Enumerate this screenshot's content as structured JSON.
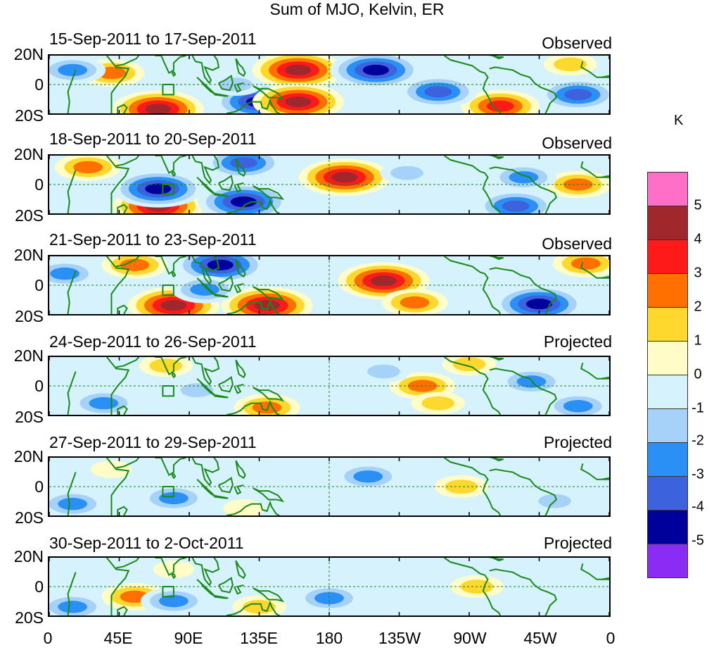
{
  "title": "Sum of MJO, Kelvin, ER",
  "panels": [
    {
      "date": "15-Sep-2011 to 17-Sep-2011",
      "type": "Observed"
    },
    {
      "date": "18-Sep-2011 to 20-Sep-2011",
      "type": "Observed"
    },
    {
      "date": "21-Sep-2011 to 23-Sep-2011",
      "type": "Observed"
    },
    {
      "date": "24-Sep-2011 to 26-Sep-2011",
      "type": "Projected"
    },
    {
      "date": "27-Sep-2011 to 29-Sep-2011",
      "type": "Projected"
    },
    {
      "date": "30-Sep-2011 to 2-Oct-2011",
      "type": "Projected"
    }
  ],
  "y_ticks": [
    "20N",
    "0",
    "20S"
  ],
  "x_ticks": [
    "0",
    "45E",
    "90E",
    "135E",
    "180",
    "135W",
    "90W",
    "45W",
    "0"
  ],
  "colorbar": {
    "unit": "K",
    "ticks": [
      "5",
      "4",
      "3",
      "2",
      "1",
      "0",
      "-1",
      "-2",
      "-3",
      "-4",
      "-5"
    ],
    "colors": [
      "#ff6ec7",
      "#a0282d",
      "#ff1a1a",
      "#ff7000",
      "#ffd82e",
      "#fffcc8",
      "#d6f3fd",
      "#a6d2fa",
      "#2a90f5",
      "#3c62de",
      "#00009a",
      "#8a2cf3"
    ]
  },
  "chart_data": {
    "type": "heatmap",
    "title": "Sum of MJO, Kelvin, ER",
    "x_range": [
      0,
      360
    ],
    "y_range": [
      -20,
      20
    ],
    "levels": [
      -5,
      -4,
      -3,
      -2,
      -1,
      0,
      1,
      2,
      3,
      4,
      5
    ],
    "panels": [
      {
        "label": "15-Sep-2011 to 17-Sep-2011",
        "status": "Observed",
        "anomalies": [
          {
            "lon": 160,
            "lat": 10,
            "value": 5
          },
          {
            "lon": 210,
            "lat": 10,
            "value": -5
          },
          {
            "lon": 135,
            "lat": -12,
            "value": -5
          },
          {
            "lon": 160,
            "lat": -12,
            "value": 5
          },
          {
            "lon": 70,
            "lat": -17,
            "value": 5
          },
          {
            "lon": 290,
            "lat": -15,
            "value": 4
          },
          {
            "lon": 340,
            "lat": -7,
            "value": -4
          },
          {
            "lon": 250,
            "lat": -5,
            "value": -4
          },
          {
            "lon": 40,
            "lat": 8,
            "value": 3
          },
          {
            "lon": 15,
            "lat": 10,
            "value": -3
          },
          {
            "lon": 120,
            "lat": 0,
            "value": -2
          },
          {
            "lon": 335,
            "lat": 14,
            "value": 2
          }
        ]
      },
      {
        "label": "18-Sep-2011 to 20-Sep-2011",
        "status": "Observed",
        "anomalies": [
          {
            "lon": 190,
            "lat": 5,
            "value": 5
          },
          {
            "lon": 70,
            "lat": -15,
            "value": 5
          },
          {
            "lon": 125,
            "lat": -12,
            "value": -5
          },
          {
            "lon": 70,
            "lat": -3,
            "value": -5
          },
          {
            "lon": 300,
            "lat": -15,
            "value": -4
          },
          {
            "lon": 125,
            "lat": 15,
            "value": -4
          },
          {
            "lon": 25,
            "lat": 12,
            "value": 3
          },
          {
            "lon": 340,
            "lat": 0,
            "value": 3
          },
          {
            "lon": 230,
            "lat": 8,
            "value": -2
          },
          {
            "lon": 305,
            "lat": 5,
            "value": -3
          }
        ]
      },
      {
        "label": "21-Sep-2011 to 23-Sep-2011",
        "status": "Observed",
        "anomalies": [
          {
            "lon": 215,
            "lat": 3,
            "value": 5
          },
          {
            "lon": 140,
            "lat": -14,
            "value": 5
          },
          {
            "lon": 80,
            "lat": -14,
            "value": 5
          },
          {
            "lon": 110,
            "lat": 14,
            "value": -5
          },
          {
            "lon": 315,
            "lat": -13,
            "value": -5
          },
          {
            "lon": 55,
            "lat": 14,
            "value": 3
          },
          {
            "lon": 235,
            "lat": -12,
            "value": 3
          },
          {
            "lon": 10,
            "lat": 8,
            "value": -3
          },
          {
            "lon": 100,
            "lat": -3,
            "value": -3
          },
          {
            "lon": 345,
            "lat": 15,
            "value": 3
          }
        ]
      },
      {
        "label": "24-Sep-2011 to 26-Sep-2011",
        "status": "Projected",
        "anomalies": [
          {
            "lon": 240,
            "lat": 0,
            "value": 3
          },
          {
            "lon": 310,
            "lat": 3,
            "value": -3
          },
          {
            "lon": 250,
            "lat": -12,
            "value": 2
          },
          {
            "lon": 140,
            "lat": -15,
            "value": 3
          },
          {
            "lon": 35,
            "lat": -12,
            "value": -3
          },
          {
            "lon": 340,
            "lat": -14,
            "value": -3
          },
          {
            "lon": 215,
            "lat": 10,
            "value": -2
          },
          {
            "lon": 75,
            "lat": 14,
            "value": 2
          },
          {
            "lon": 270,
            "lat": 15,
            "value": 2
          },
          {
            "lon": 95,
            "lat": -3,
            "value": -2
          }
        ]
      },
      {
        "label": "27-Sep-2011 to 29-Sep-2011",
        "status": "Projected",
        "anomalies": [
          {
            "lon": 80,
            "lat": -8,
            "value": -3
          },
          {
            "lon": 15,
            "lat": -12,
            "value": -3
          },
          {
            "lon": 205,
            "lat": 7,
            "value": -3
          },
          {
            "lon": 265,
            "lat": 0,
            "value": 2
          },
          {
            "lon": 125,
            "lat": -15,
            "value": 1
          },
          {
            "lon": 325,
            "lat": -10,
            "value": -2
          },
          {
            "lon": 40,
            "lat": 12,
            "value": 1
          }
        ]
      },
      {
        "label": "30-Sep-2011 to 2-Oct-2011",
        "status": "Projected",
        "anomalies": [
          {
            "lon": 55,
            "lat": -7,
            "value": 3
          },
          {
            "lon": 80,
            "lat": -10,
            "value": -3
          },
          {
            "lon": 180,
            "lat": -8,
            "value": -3
          },
          {
            "lon": 15,
            "lat": -14,
            "value": -3
          },
          {
            "lon": 275,
            "lat": 0,
            "value": 2
          },
          {
            "lon": 135,
            "lat": -14,
            "value": 2
          },
          {
            "lon": 80,
            "lat": 12,
            "value": 1
          },
          {
            "lon": 200,
            "lat": 13,
            "value": -1
          }
        ]
      }
    ]
  }
}
